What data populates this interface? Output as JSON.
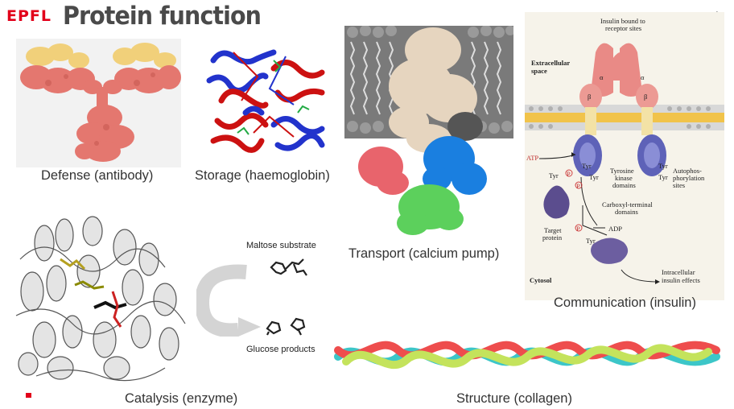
{
  "header": {
    "logo": "EPFL",
    "title": "Protein function",
    "corner_mark": "+"
  },
  "panels": {
    "defense": {
      "caption": "Defense (antibody)"
    },
    "storage": {
      "caption": "Storage (haemoglobin)"
    },
    "transport": {
      "caption": "Transport (calcium pump)"
    },
    "communication": {
      "caption": "Communication (insulin)",
      "labels": {
        "insulin_bound": "Insulin bound to",
        "receptor_sites": "receptor sites",
        "extracellular": "Extracellular",
        "space": "space",
        "alpha": "α",
        "beta": "β",
        "atp": "ATP",
        "tyr": "Tyr",
        "p": "P",
        "tyrosine": "Tyrosine",
        "kinase": "kinase",
        "domains": "domains",
        "autophos": "Autophos-",
        "phorylation": "phorylation",
        "sites": "sites",
        "carboxyl": "Carboxyl-terminal",
        "target": "Target",
        "protein": "protein",
        "adp": "ADP",
        "cytosol": "Cytosol",
        "intracellular": "Intracellular",
        "insulin_effects": "insulin effects"
      }
    },
    "catalysis": {
      "caption": "Catalysis (enzyme)",
      "substrate_label": "Maltose substrate",
      "products_label": "Glucose products"
    },
    "structure": {
      "caption": "Structure (collagen)"
    }
  },
  "colors": {
    "brand": "#e2001a",
    "title": "#4a4a4a"
  }
}
